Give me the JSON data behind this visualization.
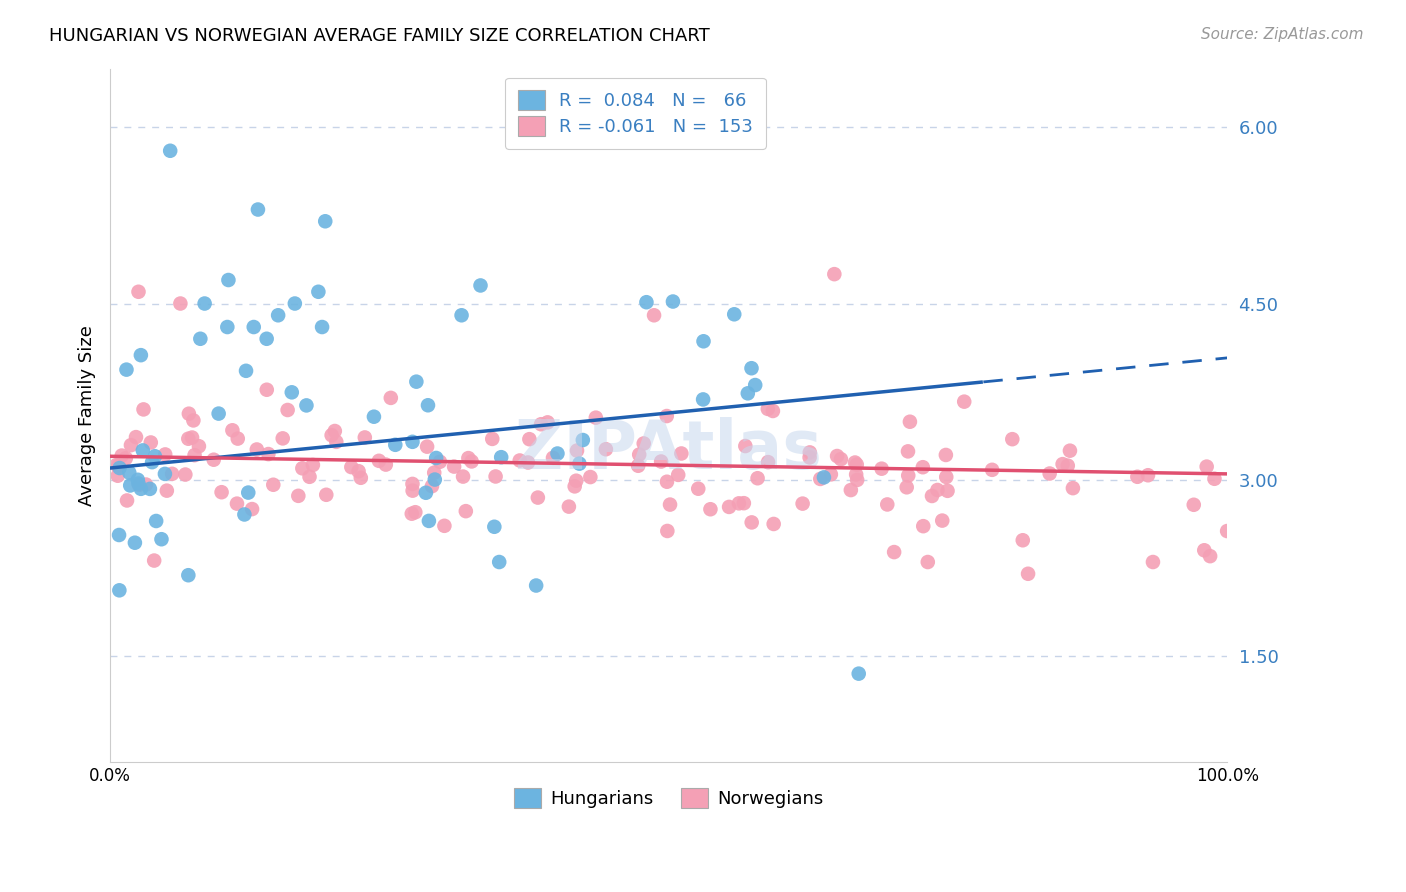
{
  "title": "HUNGARIAN VS NORWEGIAN AVERAGE FAMILY SIZE CORRELATION CHART",
  "source": "Source: ZipAtlas.com",
  "ylabel": "Average Family Size",
  "hungarian_color": "#6cb4e0",
  "norwegian_color": "#f4a0b5",
  "trend_blue": "#2060b0",
  "trend_pink": "#e05070",
  "watermark": "ZIPAtlas",
  "background_color": "#ffffff",
  "grid_color": "#c8d4e8",
  "ylim_bottom": 0.6,
  "ylim_top": 6.5,
  "xlim_left": 0.0,
  "xlim_right": 100.0,
  "y_ticks": [
    1.5,
    3.0,
    4.5,
    6.0
  ],
  "hun_trend_start": 3.1,
  "hun_trend_end_x80": 3.85,
  "nor_trend_start": 3.2,
  "nor_trend_end": 3.05,
  "hun_dash_start_x": 78,
  "hun_dash_end_x": 100
}
